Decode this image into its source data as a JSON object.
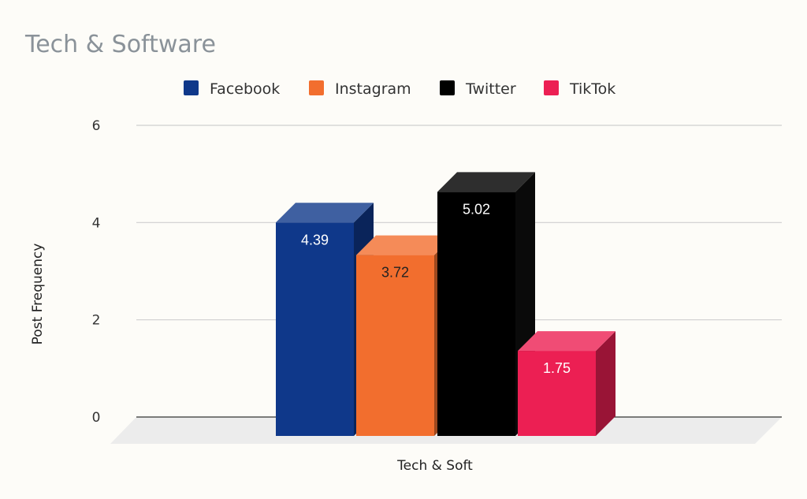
{
  "chart_data": {
    "type": "bar",
    "title": "Tech & Software",
    "categories": [
      "Tech & Soft"
    ],
    "xlabel": "",
    "ylabel": "Post Frequency",
    "ylim": [
      0,
      6
    ],
    "yticks": [
      "0",
      "2",
      "4",
      "6"
    ],
    "grid": true,
    "legend_position": "top",
    "series": [
      {
        "name": "Facebook",
        "values": [
          4.39
        ],
        "label": "4.39",
        "color": "#0f388a",
        "label_color": "#ffffff"
      },
      {
        "name": "Instagram",
        "values": [
          3.72
        ],
        "label": "3.72",
        "color": "#f26e2e",
        "label_color": "#222222"
      },
      {
        "name": "Twitter",
        "values": [
          5.02
        ],
        "label": "5.02",
        "color": "#000000",
        "label_color": "#ffffff"
      },
      {
        "name": "TikTok",
        "values": [
          1.75
        ],
        "label": "1.75",
        "color": "#ec1f53",
        "label_color": "#ffffff"
      }
    ]
  }
}
